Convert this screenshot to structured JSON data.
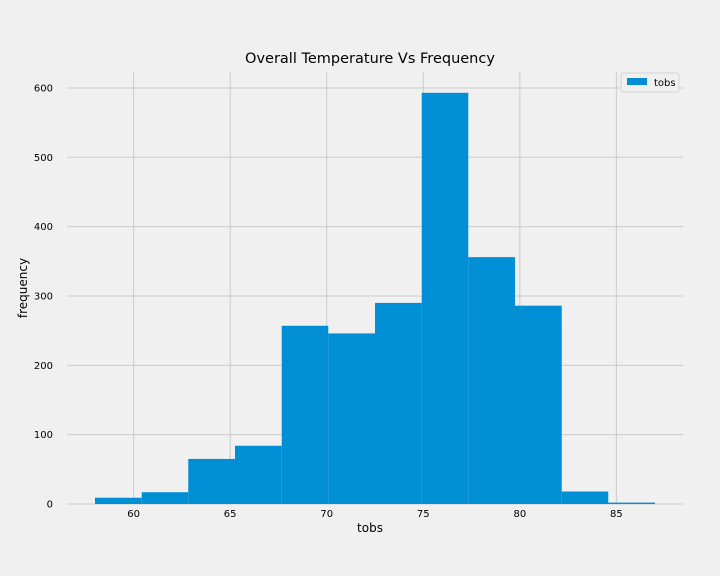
{
  "chart_data": {
    "type": "bar",
    "title": "Overall Temperature Vs Frequency",
    "xlabel": "tobs",
    "ylabel": "frequency",
    "bin_edges": [
      58,
      60.42,
      62.83,
      65.25,
      67.67,
      70.08,
      72.5,
      74.92,
      77.33,
      79.75,
      82.17,
      84.58,
      87
    ],
    "values": [
      9,
      17,
      65,
      84,
      257,
      246,
      290,
      593,
      356,
      286,
      18,
      2
    ],
    "xlim": [
      56.55,
      88.45
    ],
    "ylim": [
      0,
      623
    ],
    "xticks": [
      60,
      65,
      70,
      75,
      80,
      85
    ],
    "yticks": [
      0,
      100,
      200,
      300,
      400,
      500,
      600
    ],
    "grid": true,
    "legend": {
      "placement": "top-right",
      "entries": [
        "tobs"
      ]
    },
    "colors": {
      "bar": "#008fd5",
      "grid": "#cbcbcb",
      "background": "#f0f0f0"
    }
  }
}
